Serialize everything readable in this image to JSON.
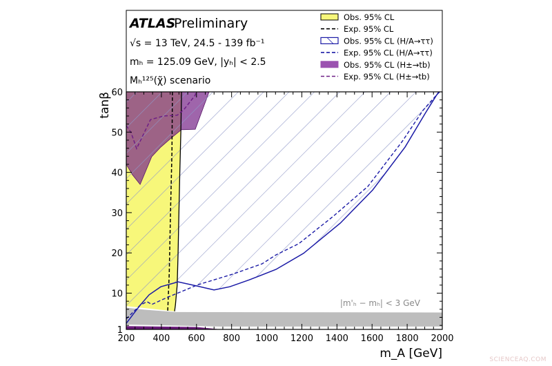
{
  "chart_data": {
    "type": "area",
    "title": "",
    "header": {
      "experiment": "ATLAS",
      "status": "Preliminary",
      "line1": "√s = 13 TeV, 24.5 - 139 fb⁻¹",
      "line2": "mₕ = 125.09 GeV, |yₕ| < 2.5",
      "line3": "Mₕ¹²⁵(χ̃) scenario"
    },
    "xlabel": "m_A [GeV]",
    "ylabel": "tanβ",
    "xlim": [
      200,
      2000
    ],
    "ylim": [
      1,
      60
    ],
    "xticks": [
      200,
      400,
      600,
      800,
      1000,
      1200,
      1400,
      1600,
      1800,
      2000
    ],
    "yticks": [
      1,
      10,
      20,
      30,
      40,
      50,
      60
    ],
    "legend_position": "top-right",
    "annotation": "|m'ₕ − mₕ| < 3 GeV",
    "series": [
      {
        "name": "Obs. 95% CL",
        "style": "filled",
        "color": "#f7f77a",
        "points": [
          [
            200,
            60
          ],
          [
            515,
            60
          ],
          [
            511,
            50
          ],
          [
            505,
            40
          ],
          [
            500,
            30
          ],
          [
            495,
            20
          ],
          [
            490,
            12
          ],
          [
            480,
            7
          ],
          [
            475,
            5.5
          ],
          [
            200,
            6.8
          ]
        ]
      },
      {
        "name": "Exp. 95% CL",
        "style": "dashed",
        "color": "#000000",
        "points": [
          [
            463,
            60
          ],
          [
            460,
            45
          ],
          [
            452,
            30
          ],
          [
            445,
            15
          ],
          [
            436,
            5.3
          ]
        ]
      },
      {
        "name": "Obs. 95% CL (H/A→ττ)",
        "style": "hatched",
        "color": "#1a1aa6",
        "points": [
          [
            200,
            2.5
          ],
          [
            240,
            4.8
          ],
          [
            279,
            7
          ],
          [
            330,
            9.6
          ],
          [
            397,
            11.6
          ],
          [
            495,
            12.8
          ],
          [
            600,
            11.8
          ],
          [
            700,
            10.8
          ],
          [
            790,
            11.6
          ],
          [
            900,
            13.3
          ],
          [
            1053,
            15.9
          ],
          [
            1210,
            19.9
          ],
          [
            1419,
            27.4
          ],
          [
            1603,
            35.6
          ],
          [
            1788,
            46.3
          ],
          [
            1906,
            54.9
          ],
          [
            1969,
            59.3
          ],
          [
            1985,
            60
          ]
        ]
      },
      {
        "name": "Exp. 95% CL (H/A→ττ)",
        "style": "dashed",
        "color": "#1a1aa6",
        "points": [
          [
            200,
            3.6
          ],
          [
            279,
            7
          ],
          [
            318,
            7.9
          ],
          [
            345,
            7.2
          ],
          [
            436,
            9
          ],
          [
            609,
            12.1
          ],
          [
            805,
            14.7
          ],
          [
            974,
            17.3
          ],
          [
            1053,
            19.5
          ],
          [
            1183,
            22.3
          ],
          [
            1379,
            29.1
          ],
          [
            1576,
            36.5
          ],
          [
            1772,
            47.7
          ],
          [
            1890,
            55.4
          ],
          [
            1969,
            59.3
          ],
          [
            1980,
            60
          ]
        ]
      },
      {
        "name": "Obs. 95% CL (H±→tb)",
        "style": "filled",
        "color": "#9b52b0",
        "points": [
          [
            200,
            60
          ],
          [
            672,
            60
          ],
          [
            593,
            50.7
          ],
          [
            514,
            50.6
          ],
          [
            455,
            48.5
          ],
          [
            397,
            46.3
          ],
          [
            345,
            43.9
          ],
          [
            279,
            37
          ],
          [
            235,
            39.4
          ],
          [
            200,
            42
          ]
        ],
        "low_region": [
          [
            200,
            1
          ],
          [
            200,
            1.8
          ],
          [
            400,
            1.7
          ],
          [
            600,
            1.6
          ],
          [
            740,
            1
          ],
          [
            200,
            1
          ]
        ]
      },
      {
        "name": "Exp. 95% CL (H±→tb)",
        "style": "dashed",
        "color": "#6e1f85",
        "points": [
          [
            200,
            51.6
          ],
          [
            227,
            49.9
          ],
          [
            259,
            45.9
          ],
          [
            338,
            53.1
          ],
          [
            412,
            54
          ],
          [
            491,
            54.2
          ],
          [
            530,
            55.7
          ],
          [
            593,
            59.2
          ],
          [
            597,
            60
          ]
        ]
      }
    ],
    "excluded_band": {
      "label": "|m'ₕ − mₕ| < 3 GeV",
      "color": "#bdbdbd",
      "upper": [
        [
          200,
          6.4
        ],
        [
          300,
          5.9
        ],
        [
          480,
          5.3
        ],
        [
          2000,
          5.2
        ]
      ],
      "lower": [
        [
          2000,
          1.7
        ],
        [
          740,
          1.7
        ],
        [
          200,
          2.2
        ]
      ]
    }
  },
  "watermark": "SCIENCEAQ.COM"
}
